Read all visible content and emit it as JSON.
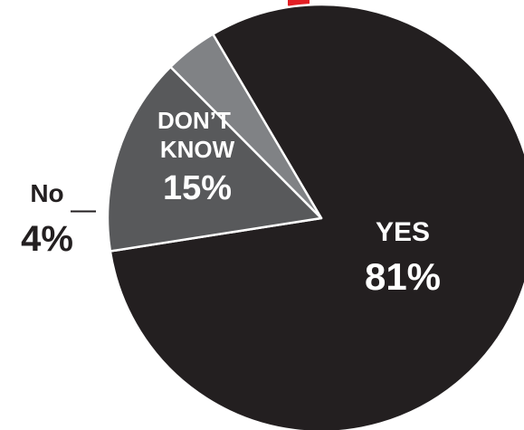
{
  "chart_data": {
    "type": "pie",
    "title": "",
    "colors": {
      "yes": "#231f20",
      "dont_know": "#58595b",
      "no": "#808285",
      "separator": "#ffffff",
      "label_dark": "#231f20",
      "label_light": "#ffffff",
      "title_fragment": "#e31e24"
    },
    "slices": [
      {
        "label": "YES",
        "value": 81,
        "value_label": "81%"
      },
      {
        "label": "DON’T\nKNOW",
        "value": 15,
        "value_label": "15%"
      },
      {
        "label": "No",
        "value": 4,
        "value_label": "4%"
      }
    ]
  }
}
